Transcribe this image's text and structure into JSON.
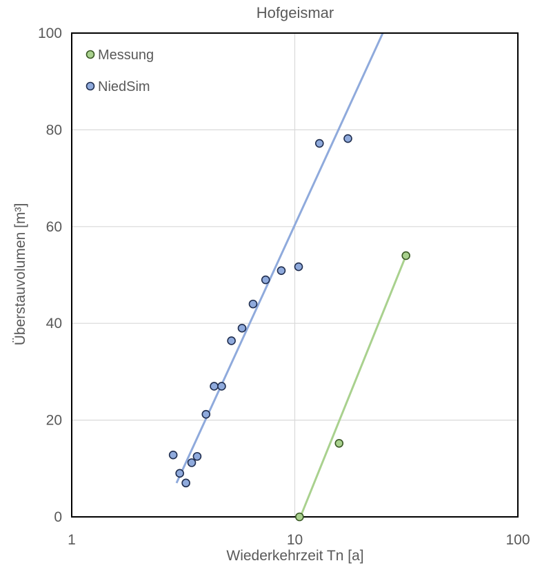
{
  "chart_data": {
    "type": "scatter",
    "title": "Hofgeismar",
    "xlabel": "Wiederkehrzeit Tn [a]",
    "ylabel": "Überstauvolumen [m³]",
    "x_scale": "log",
    "xlim": [
      1,
      100
    ],
    "ylim": [
      0,
      100
    ],
    "x_ticks": [
      1,
      10,
      100
    ],
    "y_ticks": [
      0,
      20,
      40,
      60,
      80,
      100
    ],
    "x_tick_labels": [
      "1",
      "10",
      "100"
    ],
    "y_tick_labels": [
      "0",
      "20",
      "40",
      "60",
      "80",
      "100"
    ],
    "grid": true,
    "legend_position": "top-left",
    "series": [
      {
        "name": "Messung",
        "color": "#a9d18e",
        "marker_color": "#a9d18e",
        "edge_color": "#385723",
        "line_color": "#a9d18e",
        "points": [
          {
            "x": 10.5,
            "y": 0
          },
          {
            "x": 15.8,
            "y": 15.2
          },
          {
            "x": 31.5,
            "y": 54.0
          }
        ],
        "trendline": [
          {
            "x": 10.6,
            "y": 0
          },
          {
            "x": 31.5,
            "y": 54.0
          }
        ]
      },
      {
        "name": "NiedSim",
        "color": "#8faadc",
        "marker_color": "#8faadc",
        "edge_color": "#1f2d4e",
        "line_color": "#8faadc",
        "points": [
          {
            "x": 2.85,
            "y": 12.8
          },
          {
            "x": 3.05,
            "y": 9.0
          },
          {
            "x": 3.25,
            "y": 7.0
          },
          {
            "x": 3.45,
            "y": 11.2
          },
          {
            "x": 3.65,
            "y": 12.5
          },
          {
            "x": 4.0,
            "y": 21.2
          },
          {
            "x": 4.35,
            "y": 27.0
          },
          {
            "x": 4.7,
            "y": 27.0
          },
          {
            "x": 5.2,
            "y": 36.4
          },
          {
            "x": 5.8,
            "y": 39.0
          },
          {
            "x": 6.5,
            "y": 44.0
          },
          {
            "x": 7.4,
            "y": 49.0
          },
          {
            "x": 8.7,
            "y": 50.9
          },
          {
            "x": 10.4,
            "y": 51.7
          },
          {
            "x": 12.9,
            "y": 77.2
          },
          {
            "x": 17.3,
            "y": 78.2
          }
        ],
        "trendline": [
          {
            "x": 2.95,
            "y": 7.0
          },
          {
            "x": 24.8,
            "y": 100
          }
        ]
      }
    ]
  }
}
